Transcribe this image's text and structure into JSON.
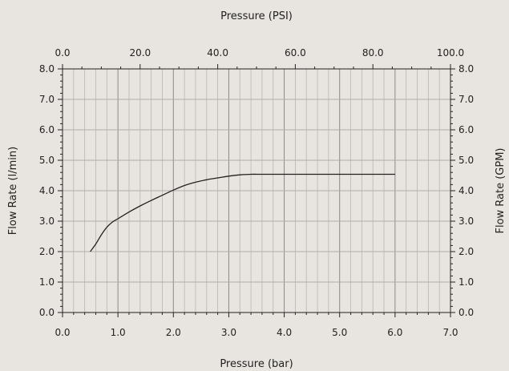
{
  "chart_data": {
    "type": "line",
    "title": "",
    "xlabel": "Pressure (bar)",
    "x2label": "Pressure (PSI)",
    "ylabel": "Flow Rate (l/min)",
    "y2label": "Flow Rate (GPM)",
    "xlim": [
      0,
      7
    ],
    "x2lim": [
      0,
      100
    ],
    "ylim": [
      0,
      8
    ],
    "y2lim": [
      0,
      8
    ],
    "xticks": [
      "0.0",
      "1.0",
      "2.0",
      "3.0",
      "4.0",
      "5.0",
      "6.0",
      "7.0"
    ],
    "x2ticks": [
      "0.0",
      "20.0",
      "40.0",
      "60.0",
      "80.0",
      "100.0"
    ],
    "yticks": [
      "0.0",
      "1.0",
      "2.0",
      "3.0",
      "4.0",
      "5.0",
      "6.0",
      "7.0",
      "8.0"
    ],
    "y2ticks": [
      "0.0",
      "1.0",
      "2.0",
      "3.0",
      "4.0",
      "5.0",
      "6.0",
      "7.0",
      "8.0"
    ],
    "grid": true,
    "series": [
      {
        "x": [
          0.5,
          0.6,
          0.7,
          0.8,
          0.9,
          1.0,
          1.2,
          1.4,
          1.6,
          1.8,
          2.0,
          2.2,
          2.4,
          2.6,
          2.8,
          3.0,
          3.2,
          3.4,
          3.6,
          4.0,
          4.5,
          5.0,
          5.5,
          6.0
        ],
        "y": [
          2.0,
          2.25,
          2.55,
          2.8,
          2.97,
          3.08,
          3.3,
          3.5,
          3.68,
          3.85,
          4.02,
          4.17,
          4.28,
          4.36,
          4.42,
          4.48,
          4.52,
          4.54,
          4.54,
          4.54,
          4.54,
          4.54,
          4.54,
          4.54
        ],
        "color": "#222222"
      }
    ]
  }
}
